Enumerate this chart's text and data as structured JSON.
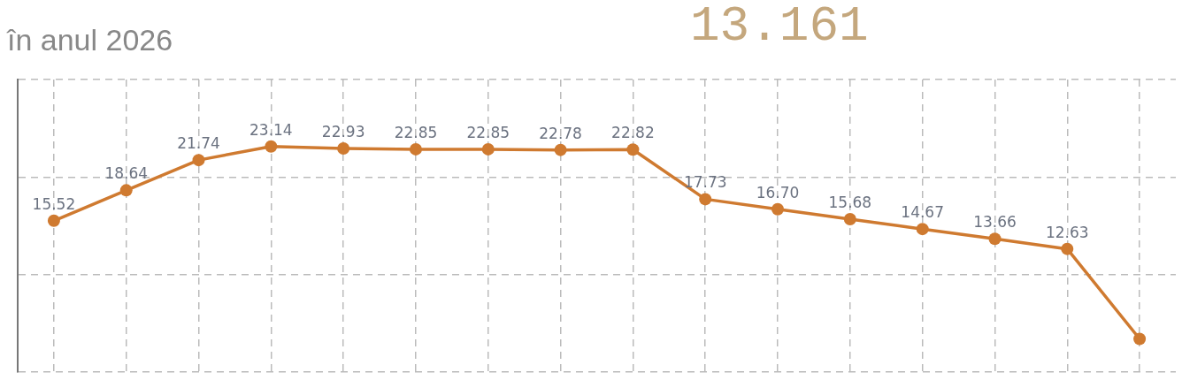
{
  "chart_data": {
    "type": "line",
    "title": "13.161",
    "subtitle": "în anul 2026",
    "categories": [
      null,
      null,
      null,
      null,
      null,
      null,
      null,
      null,
      null,
      null,
      null,
      null,
      null,
      null,
      null,
      null
    ],
    "values": [
      15.52,
      18.64,
      21.74,
      23.14,
      22.93,
      22.85,
      22.85,
      22.78,
      22.82,
      17.73,
      16.7,
      15.68,
      14.67,
      13.66,
      12.63,
      3.4
    ],
    "value_labels": [
      "15.52",
      "18.64",
      "21.74",
      "23.14",
      "22.93",
      "22.85",
      "22.85",
      "22.78",
      "22.82",
      "17.73",
      "16.70",
      "15.68",
      "14.67",
      "13.66",
      "12.63",
      null
    ],
    "color": "#cf7a30",
    "marker": "circle",
    "ylim": [
      0,
      30
    ],
    "yticks": [
      0,
      10,
      20,
      30
    ],
    "grid": true,
    "tick_labels": false
  }
}
